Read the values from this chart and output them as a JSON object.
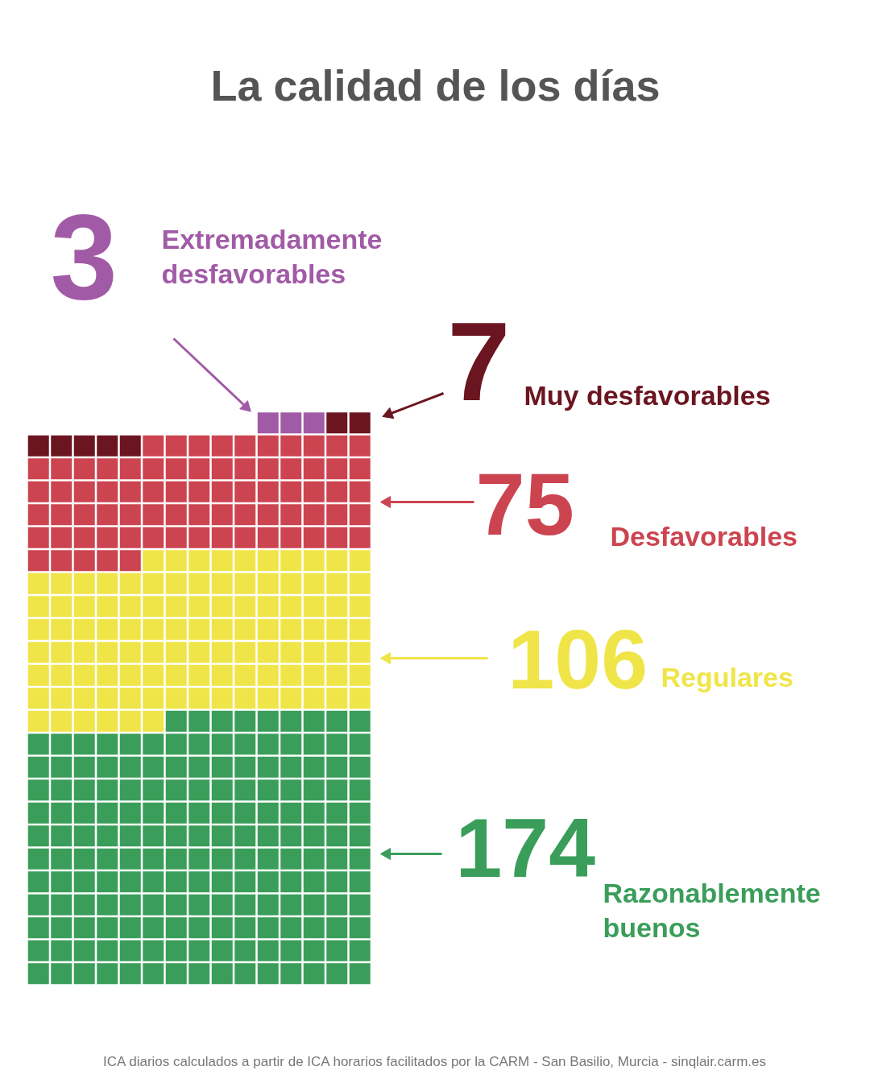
{
  "chart_data": {
    "type": "other",
    "title": "La calidad de los días",
    "categories": [
      "Extremadamente\ndesfavorables",
      "Muy desfavorables",
      "Desfavorables",
      "Regulares",
      "Razonablemente\nbuenos"
    ],
    "values": [
      3,
      7,
      75,
      106,
      174
    ],
    "data_labels": true,
    "colors": [
      "#a15ba6",
      "#6b1520",
      "#cc4450",
      "#f0e548",
      "#3a9e5a"
    ],
    "annotations": [
      "ICA diarios calculados a partir de ICA horarios facilitados por la CARM - San Basilio, Murcia - sinqlair.carm.es"
    ]
  }
}
